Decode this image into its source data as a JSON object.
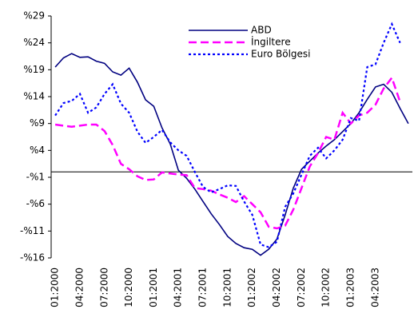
{
  "chart_data": {
    "type": "line",
    "categories": [
      "01:2000",
      null,
      null,
      "04:2000",
      null,
      null,
      "07:2000",
      null,
      null,
      "10:2000",
      null,
      null,
      "01:2001",
      null,
      null,
      "04:2001",
      null,
      null,
      "07:2001",
      null,
      null,
      "10:2001",
      null,
      null,
      "01:2002",
      null,
      null,
      "04:2002",
      null,
      null,
      "07:2002",
      null,
      null,
      "10:2002",
      null,
      null,
      "01:2003",
      null,
      null,
      "04:2003",
      null,
      null,
      null,
      null
    ],
    "series": [
      {
        "name": "ABD",
        "color": "#000080",
        "style": "solid",
        "values": [
          19.5,
          21.2,
          22,
          21.3,
          21.4,
          20.6,
          20.2,
          18.6,
          18,
          19.3,
          16.7,
          13.4,
          12.2,
          8.2,
          5.2,
          0.3,
          -1.2,
          -3.2,
          -5.5,
          -7.8,
          -9.8,
          -12,
          -13.3,
          -14.1,
          -14.4,
          -15.5,
          -14.4,
          -12.5,
          -8,
          -3,
          0.5,
          2,
          3.5,
          4.8,
          6,
          7.5,
          9,
          11,
          13.5,
          15.8,
          16.3,
          14.8,
          11.8,
          9
        ]
      },
      {
        "name": "İngiltere",
        "color": "#ff00ff",
        "style": "dashed",
        "values": [
          8.8,
          8.6,
          8.4,
          8.6,
          8.8,
          8.8,
          7.6,
          5,
          1.5,
          0.5,
          -0.8,
          -1.5,
          -1.4,
          -0.1,
          -0.3,
          -0.5,
          -0.6,
          -3,
          -3.2,
          -3.5,
          -4.2,
          -4.8,
          -5.6,
          -4.5,
          -6,
          -7.5,
          -10.2,
          -10.5,
          -10,
          -7,
          -3,
          1,
          3.5,
          6.5,
          6,
          11,
          9,
          10.5,
          11,
          12.5,
          15.5,
          17.5,
          13,
          null
        ]
      },
      {
        "name": "Euro Bölgesi",
        "color": "#0000ff",
        "style": "dotted",
        "values": [
          10.5,
          12.8,
          13.2,
          14.5,
          11,
          12,
          14.5,
          16.3,
          12.7,
          11,
          7.5,
          5.4,
          6.5,
          7.8,
          5.5,
          4,
          3,
          0,
          -2.8,
          -3.8,
          -3.2,
          -2.5,
          -2.6,
          -5.5,
          -8,
          -13.5,
          -14,
          -13,
          -6.5,
          -4,
          -0.5,
          3,
          4.5,
          2.5,
          4,
          6,
          10,
          9.5,
          19.5,
          20,
          24,
          27.5,
          24,
          null
        ]
      }
    ],
    "ylim": [
      -16,
      29
    ],
    "yticks": [
      {
        "value": 29,
        "label": "%29"
      },
      {
        "value": 24,
        "label": "%24"
      },
      {
        "value": 19,
        "label": "%19"
      },
      {
        "value": 14,
        "label": "%14"
      },
      {
        "value": 9,
        "label": "%9"
      },
      {
        "value": 4,
        "label": "%4"
      },
      {
        "value": -1,
        "label": "-%1"
      },
      {
        "value": -6,
        "label": "-%6"
      },
      {
        "value": -11,
        "label": "-%11"
      },
      {
        "value": -16,
        "label": "-%16"
      }
    ],
    "legend": "top"
  }
}
